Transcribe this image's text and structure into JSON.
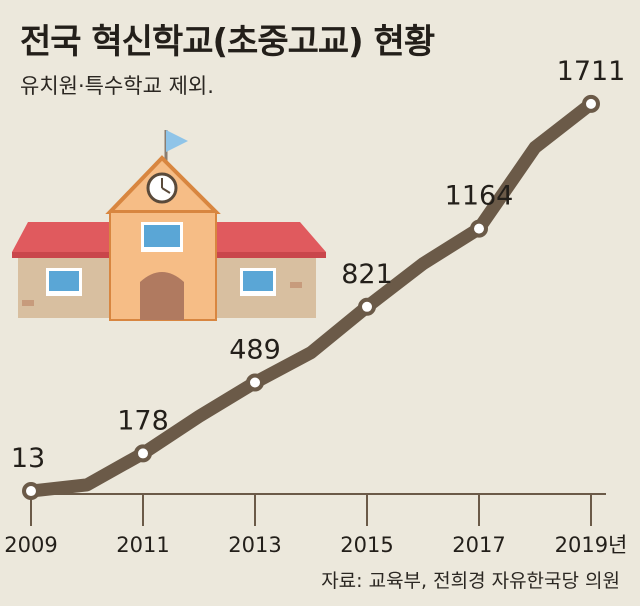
{
  "title": "전국 혁신학교(초중고교) 현황",
  "subtitle": "유치원·특수학교 제외.",
  "source": "자료: 교육부, 전희경 자유한국당 의원",
  "colors": {
    "line": "#6b5a48",
    "background": "#ece8dc",
    "roof": "#e05a5e",
    "wall": "#d8bfa0",
    "tower": "#f6bd86",
    "window": "#5aa6d6",
    "flag": "#8fc4e8"
  },
  "chart_data": {
    "type": "line",
    "x": [
      2009,
      2010,
      2011,
      2012,
      2013,
      2014,
      2015,
      2016,
      2017,
      2018,
      2019
    ],
    "y": [
      13,
      40,
      178,
      340,
      489,
      620,
      821,
      1010,
      1164,
      1520,
      1711
    ],
    "labeled_points": [
      {
        "x": 2009,
        "y": 13,
        "label": "13"
      },
      {
        "x": 2011,
        "y": 178,
        "label": "178"
      },
      {
        "x": 2013,
        "y": 489,
        "label": "489"
      },
      {
        "x": 2015,
        "y": 821,
        "label": "821"
      },
      {
        "x": 2017,
        "y": 1164,
        "label": "1164"
      },
      {
        "x": 2019,
        "y": 1711,
        "label": "1711"
      }
    ],
    "x_tick_labels": [
      "2009",
      "2011",
      "2013",
      "2015",
      "2017",
      "2019년"
    ],
    "xlim": [
      2009,
      2019
    ],
    "ylim": [
      0,
      1750
    ],
    "grid": false,
    "xlabel": "",
    "ylabel": ""
  }
}
